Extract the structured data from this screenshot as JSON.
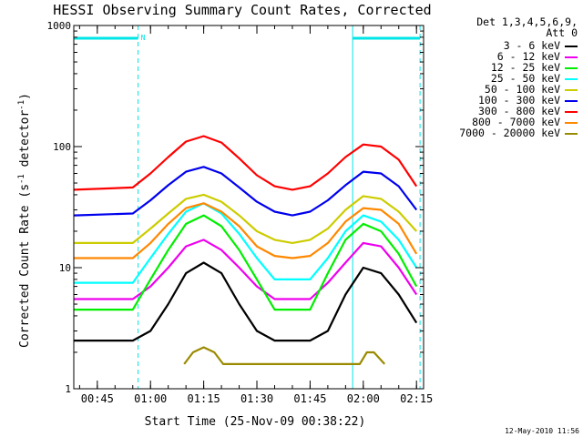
{
  "chart_data": {
    "type": "line",
    "title": "HESSI Observing Summary Count Rates, Corrected",
    "xlabel": "Start Time (25-Nov-09 00:38:22)",
    "ylabel": "Corrected Count Rate (s⁻¹ detector⁻¹)",
    "y_scale": "log",
    "ylim": [
      1,
      1000
    ],
    "xlim": [
      "00:38:22",
      "02:17:00"
    ],
    "x_ticks": [
      "00:45",
      "01:00",
      "01:15",
      "01:30",
      "01:45",
      "02:00",
      "02:15"
    ],
    "y_ticks": [
      "1",
      "10",
      "100",
      "1000"
    ],
    "legend_title": [
      "Det 1,3,4,5,6,9,",
      "Att 0"
    ],
    "legend_position": "right",
    "grid": false,
    "timestamp": "12-May-2010 11:56",
    "intervals": [
      {
        "start": "00:38:22",
        "end": "00:56:30",
        "label": "N",
        "color": "#00e5e5"
      },
      {
        "start": "01:57:00",
        "end": "02:16:00",
        "label": "",
        "color": "#00e5e5"
      }
    ],
    "series": [
      {
        "name": "3 - 6 keV",
        "color": "#000000",
        "x": [
          "00:38:30",
          "00:55:00",
          "01:00:00",
          "01:05:00",
          "01:10:00",
          "01:15:00",
          "01:20:00",
          "01:25:00",
          "01:30:00",
          "01:35:00",
          "01:40:00",
          "01:45:00",
          "01:50:00",
          "01:55:00",
          "02:00:00",
          "02:05:00",
          "02:10:00",
          "02:15:00"
        ],
        "y": [
          2.5,
          2.5,
          3.0,
          5.0,
          9.0,
          11.0,
          9.0,
          5.0,
          3.0,
          2.5,
          2.5,
          2.5,
          3.0,
          6.0,
          10.0,
          9.0,
          6.0,
          3.5
        ]
      },
      {
        "name": "6 - 12 keV",
        "color": "#ee00ee",
        "x": [
          "00:38:30",
          "00:55:00",
          "01:00:00",
          "01:05:00",
          "01:10:00",
          "01:15:00",
          "01:20:00",
          "01:25:00",
          "01:30:00",
          "01:35:00",
          "01:40:00",
          "01:45:00",
          "01:50:00",
          "01:55:00",
          "02:00:00",
          "02:05:00",
          "02:10:00",
          "02:15:00"
        ],
        "y": [
          5.5,
          5.5,
          7.0,
          10.0,
          15.0,
          17.0,
          14.0,
          10.0,
          7.0,
          5.5,
          5.5,
          5.5,
          7.5,
          11.0,
          16.0,
          15.0,
          10.0,
          6.0
        ]
      },
      {
        "name": "12 - 25 keV",
        "color": "#00ee00",
        "x": [
          "00:38:30",
          "00:55:00",
          "01:00:00",
          "01:05:00",
          "01:10:00",
          "01:15:00",
          "01:20:00",
          "01:25:00",
          "01:30:00",
          "01:35:00",
          "01:40:00",
          "01:45:00",
          "01:50:00",
          "01:55:00",
          "02:00:00",
          "02:05:00",
          "02:10:00",
          "02:15:00"
        ],
        "y": [
          4.5,
          4.5,
          8.0,
          14.0,
          23.0,
          27.0,
          22.0,
          14.0,
          8.0,
          4.5,
          4.5,
          4.5,
          9.0,
          17.0,
          23.0,
          20.0,
          13.0,
          7.0
        ]
      },
      {
        "name": "25 - 50 keV",
        "color": "#00ffff",
        "x": [
          "00:38:30",
          "00:55:00",
          "01:00:00",
          "01:05:00",
          "01:10:00",
          "01:15:00",
          "01:20:00",
          "01:25:00",
          "01:30:00",
          "01:35:00",
          "01:40:00",
          "01:45:00",
          "01:50:00",
          "01:55:00",
          "02:00:00",
          "02:05:00",
          "02:10:00",
          "02:15:00"
        ],
        "y": [
          7.5,
          7.5,
          12.0,
          19.0,
          29.0,
          34.0,
          28.0,
          19.0,
          12.0,
          8.0,
          8.0,
          8.0,
          12.0,
          20.0,
          27.0,
          24.0,
          17.0,
          10.0
        ]
      },
      {
        "name": "50 - 100 keV",
        "color": "#cccc00",
        "x": [
          "00:38:30",
          "00:55:00",
          "01:00:00",
          "01:05:00",
          "01:10:00",
          "01:15:00",
          "01:20:00",
          "01:25:00",
          "01:30:00",
          "01:35:00",
          "01:40:00",
          "01:45:00",
          "01:50:00",
          "01:55:00",
          "02:00:00",
          "02:05:00",
          "02:10:00",
          "02:15:00"
        ],
        "y": [
          16.0,
          16.0,
          21.0,
          28.0,
          37.0,
          40.0,
          35.0,
          27.0,
          20.0,
          17.0,
          16.0,
          17.0,
          21.0,
          30.0,
          39.0,
          37.0,
          29.0,
          20.0
        ]
      },
      {
        "name": "100 - 300 keV",
        "color": "#0000ee",
        "x": [
          "00:38:30",
          "00:55:00",
          "01:00:00",
          "01:05:00",
          "01:10:00",
          "01:15:00",
          "01:20:00",
          "01:25:00",
          "01:30:00",
          "01:35:00",
          "01:40:00",
          "01:45:00",
          "01:50:00",
          "01:55:00",
          "02:00:00",
          "02:05:00",
          "02:10:00",
          "02:15:00"
        ],
        "y": [
          27.0,
          28.0,
          36.0,
          48.0,
          62.0,
          68.0,
          60.0,
          46.0,
          35.0,
          29.0,
          27.0,
          29.0,
          36.0,
          48.0,
          62.0,
          60.0,
          47.0,
          30.0
        ]
      },
      {
        "name": "300 - 800 keV",
        "color": "#ff0000",
        "x": [
          "00:38:30",
          "00:55:00",
          "01:00:00",
          "01:05:00",
          "01:10:00",
          "01:15:00",
          "01:20:00",
          "01:25:00",
          "01:30:00",
          "01:35:00",
          "01:40:00",
          "01:45:00",
          "01:50:00",
          "01:55:00",
          "02:00:00",
          "02:05:00",
          "02:10:00",
          "02:15:00"
        ],
        "y": [
          44.0,
          46.0,
          60.0,
          82.0,
          110.0,
          122.0,
          108.0,
          80.0,
          58.0,
          47.0,
          44.0,
          47.0,
          60.0,
          82.0,
          104.0,
          100.0,
          78.0,
          47.0
        ]
      },
      {
        "name": "800 - 7000 keV",
        "color": "#ff8800",
        "x": [
          "00:38:30",
          "00:55:00",
          "01:00:00",
          "01:05:00",
          "01:10:00",
          "01:15:00",
          "01:20:00",
          "01:25:00",
          "01:30:00",
          "01:35:00",
          "01:40:00",
          "01:45:00",
          "01:50:00",
          "01:55:00",
          "02:00:00",
          "02:05:00",
          "02:10:00",
          "02:15:00"
        ],
        "y": [
          12.0,
          12.0,
          16.0,
          23.0,
          31.0,
          34.0,
          29.0,
          22.0,
          15.0,
          12.5,
          12.0,
          12.5,
          16.0,
          24.0,
          31.0,
          30.0,
          23.0,
          13.0
        ]
      },
      {
        "name": "7000 - 20000 keV",
        "color": "#9a8a00",
        "x": [
          "01:09:30",
          "01:12:00",
          "01:15:00",
          "01:18:00",
          "01:20:30",
          "01:59:00",
          "02:01:00",
          "02:03:00",
          "02:06:00"
        ],
        "y": [
          1.6,
          2.0,
          2.2,
          2.0,
          1.6,
          1.6,
          2.0,
          2.0,
          1.6
        ]
      }
    ]
  }
}
